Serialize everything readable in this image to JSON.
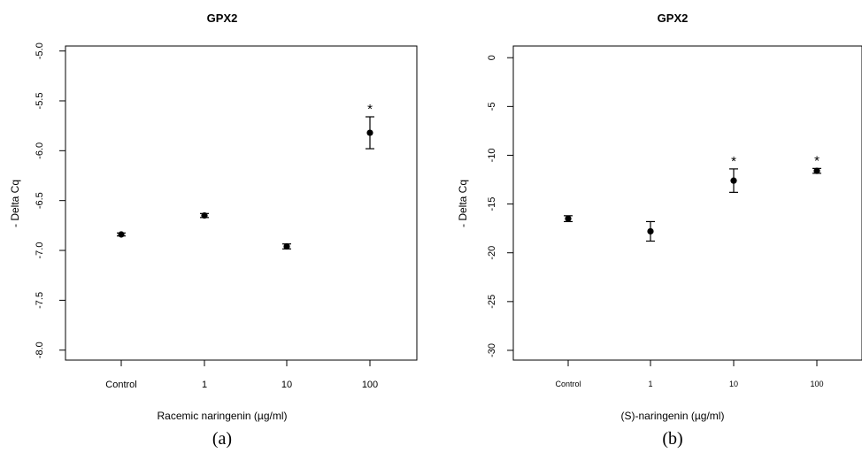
{
  "chart_data": [
    {
      "type": "scatter",
      "title": "GPX2",
      "xlabel": "Racemic naringenin (µg/ml)",
      "ylabel": "- Delta Cq",
      "panel_label": "(a)",
      "categories": [
        "Control",
        "1",
        "10",
        "100"
      ],
      "values": [
        -6.84,
        -6.65,
        -6.96,
        -5.82
      ],
      "errors": [
        0.015,
        0.02,
        0.025,
        0.16
      ],
      "significant": [
        "",
        "",
        "",
        "*"
      ],
      "ylim": [
        -8.1,
        -4.95
      ],
      "yticks": [
        -8.0,
        -7.5,
        -7.0,
        -6.5,
        -6.0,
        -5.5,
        -5.0
      ],
      "ytick_labels": [
        "-8.0",
        "-7.5",
        "-7.0",
        "-6.5",
        "-6.0",
        "-5.5",
        "-5.0"
      ],
      "grid": false
    },
    {
      "type": "scatter",
      "title": "GPX2",
      "xlabel": "(S)-naringenin (µg/ml)",
      "ylabel": "- Delta Cq",
      "panel_label": "(b)",
      "categories": [
        "Control",
        "1",
        "10",
        "100"
      ],
      "values": [
        -16.5,
        -17.8,
        -12.6,
        -11.6
      ],
      "errors": [
        0.3,
        1.0,
        1.2,
        0.25
      ],
      "significant": [
        "",
        "",
        "*",
        "*"
      ],
      "ylim": [
        -31.0,
        1.2
      ],
      "yticks": [
        -30,
        -25,
        -20,
        -15,
        -10,
        -5,
        0
      ],
      "ytick_labels": [
        "-30",
        "-25",
        "-20",
        "-15",
        "-10",
        "-5",
        "0"
      ],
      "grid": false
    }
  ]
}
